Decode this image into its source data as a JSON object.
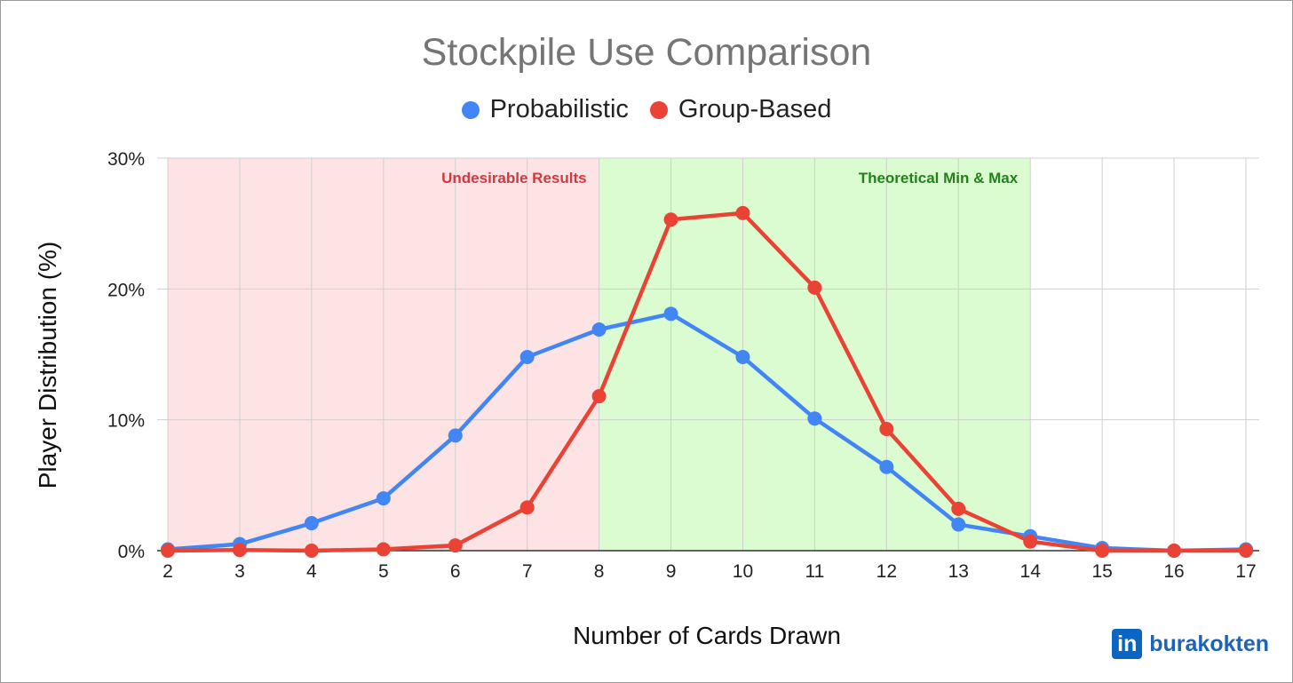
{
  "chart_data": {
    "type": "line",
    "title": "Stockpile Use Comparison",
    "xlabel": "Number of Cards Drawn",
    "ylabel": "Player Distribution (%)",
    "x": [
      2,
      3,
      4,
      5,
      6,
      7,
      8,
      9,
      10,
      11,
      12,
      13,
      14,
      15,
      16,
      17
    ],
    "xlim": [
      2,
      17
    ],
    "ylim": [
      0,
      30
    ],
    "yticks": [
      0,
      10,
      20,
      30
    ],
    "ytick_labels": [
      "0%",
      "10%",
      "20%",
      "30%"
    ],
    "grid": true,
    "legend_position": "top",
    "series": [
      {
        "name": "Probabilistic",
        "color": "#4285f4",
        "values": [
          0.1,
          0.5,
          2.1,
          4.0,
          8.8,
          14.8,
          16.9,
          18.1,
          14.8,
          10.1,
          6.4,
          2.0,
          1.1,
          0.2,
          0.0,
          0.1
        ]
      },
      {
        "name": "Group-Based",
        "color": "#ea4335",
        "values": [
          0.0,
          0.05,
          0.0,
          0.1,
          0.4,
          3.3,
          11.8,
          25.3,
          25.8,
          20.1,
          9.3,
          3.2,
          0.7,
          0.0,
          0.0,
          0.0
        ]
      }
    ],
    "regions": [
      {
        "label": "Undesirable Results",
        "x_start": 2,
        "x_end": 8,
        "fill": "#fde3e4",
        "text_color": "#d0393f"
      },
      {
        "label": "Theoretical Min & Max",
        "x_start": 8,
        "x_end": 14,
        "fill": "#dbfcd0",
        "text_color": "#23801b"
      }
    ]
  },
  "branding": {
    "logo_text": "in",
    "handle": "burakokten"
  }
}
